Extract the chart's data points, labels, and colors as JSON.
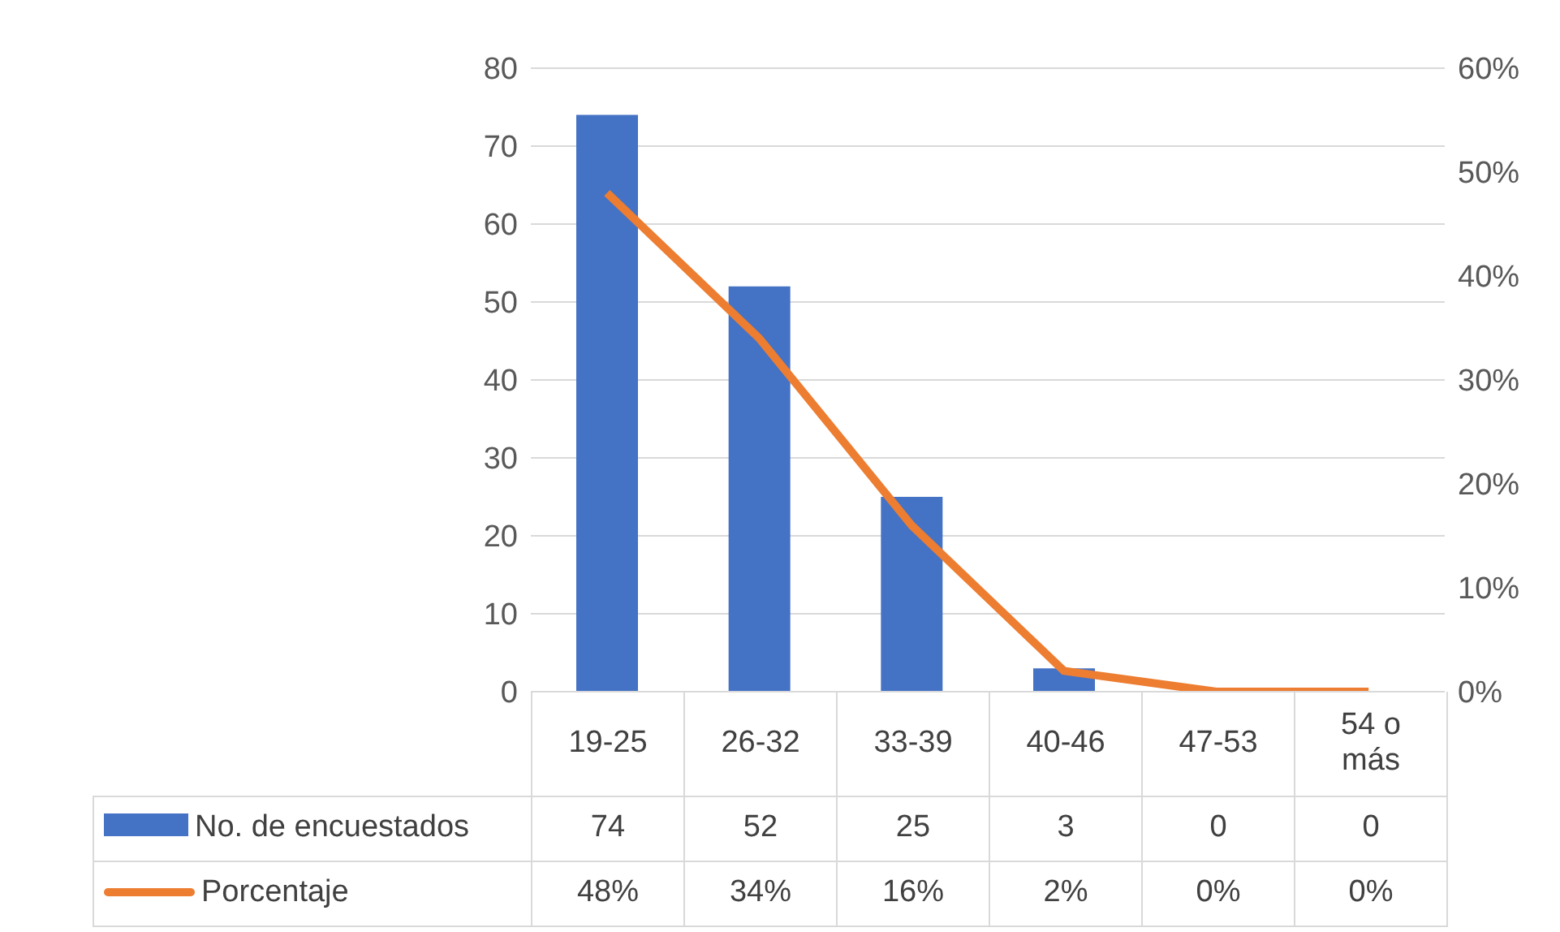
{
  "chart_data": {
    "type": "bar",
    "categories": [
      "19-25",
      "26-32",
      "33-39",
      "40-46",
      "47-53",
      "54 o más"
    ],
    "series": [
      {
        "name": "No. de encuestados",
        "color": "#4472c4",
        "values": [
          74,
          52,
          25,
          3,
          0,
          0
        ],
        "value_labels": [
          "74",
          "52",
          "25",
          "3",
          "0",
          "0"
        ]
      },
      {
        "name": "Porcentaje",
        "type": "line",
        "axis": "y2",
        "color": "#ed7d31",
        "values": [
          48,
          34,
          16,
          2,
          0,
          0
        ],
        "value_labels": [
          "48%",
          "34%",
          "16%",
          "2%",
          "0%",
          "0%"
        ]
      }
    ],
    "ylim": [
      0,
      80
    ],
    "yticks": [
      0,
      10,
      20,
      30,
      40,
      50,
      60,
      70,
      80
    ],
    "y2lim": [
      0,
      60
    ],
    "y2ticks": [
      {
        "value": 0,
        "label": "0%"
      },
      {
        "value": 10,
        "label": "10%"
      },
      {
        "value": 20,
        "label": "20%"
      },
      {
        "value": 30,
        "label": "30%"
      },
      {
        "value": 40,
        "label": "40%"
      },
      {
        "value": 50,
        "label": "50%"
      },
      {
        "value": 60,
        "label": "60%"
      }
    ],
    "grid": "y",
    "legend": "bottom",
    "marker": "none",
    "line_style": "solid"
  }
}
